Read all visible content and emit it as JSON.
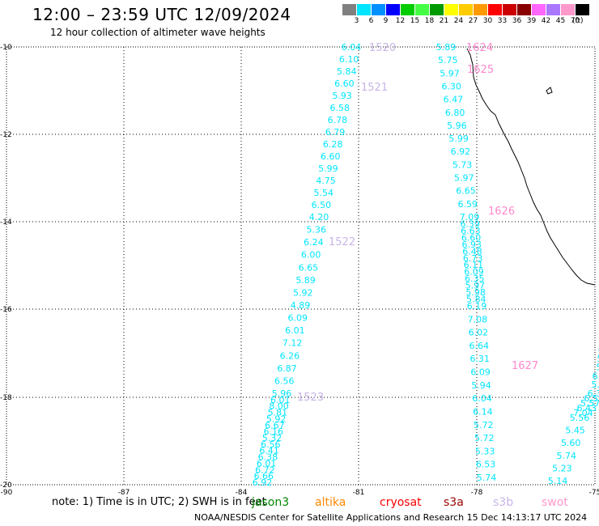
{
  "header": {
    "title": "12:00 – 23:59 UTC 12/09/2024",
    "subtitle": "12 hour collection of altimeter wave heights"
  },
  "legend": {
    "colors": [
      "#808080",
      "#00e5ff",
      "#0090ff",
      "#0000ff",
      "#00cc00",
      "#44ff44",
      "#009900",
      "#ffff00",
      "#ffcc00",
      "#ff9900",
      "#ff0000",
      "#cc0000",
      "#880000",
      "#ff66ff",
      "#aa77ff",
      "#ff99cc",
      "#000000"
    ],
    "labels": [
      "3",
      "6",
      "9",
      "12",
      "15",
      "18",
      "21",
      "24",
      "27",
      "30",
      "33",
      "36",
      "39",
      "42",
      "45",
      "70"
    ],
    "unit": "(ft)"
  },
  "axes": {
    "x_ticks": [
      "-90",
      "-87",
      "-84",
      "-81",
      "-78",
      "-75"
    ],
    "y_ticks": [
      "-10",
      "-12",
      "-14",
      "-16",
      "-18",
      "-20"
    ]
  },
  "tracks": {
    "color_wave": "#00e5ff",
    "color_s3b": "#c8b4e6",
    "color_swot": "#ff88cc",
    "t1520": [
      "6.04",
      "6.10",
      "5.84",
      "6.60",
      "5.93",
      "6.58",
      "6.78",
      "6.79",
      "6.28",
      "6.60",
      "5.99",
      "4.75",
      "5.54",
      "6.50",
      "4.20",
      "5.36",
      "6.24",
      "6.00",
      "6.65",
      "5.89",
      "5.92",
      "4.89",
      "6.09",
      "6.01",
      "7.12",
      "6.26",
      "6.87",
      "6.56",
      "5.96",
      "6.01",
      "8.00",
      "5.81",
      "5.92",
      "6.67",
      "6.16",
      "5.32",
      "6.56",
      "6.41",
      "6.38",
      "6.01",
      "6.72",
      "6.66",
      "6.92"
    ],
    "t1624": [
      "5.89",
      "5.75",
      "5.97",
      "6.30",
      "6.47",
      "6.80",
      "5.96",
      "5.99",
      "6.92",
      "5.73",
      "5.97",
      "6.65",
      "6.59",
      "7.09",
      "6.39",
      "6.63",
      "6.60",
      "6.93",
      "6.48",
      "6.73",
      "6.11",
      "6.09",
      "6.35",
      "5.97",
      "5.98",
      "5.84",
      "6.19",
      "7.08",
      "6.02",
      "6.64",
      "6.31",
      "6.09",
      "5.94",
      "6.04",
      "6.14",
      "5.72",
      "5.72",
      "5.33",
      "6.53",
      "5.74"
    ],
    "t1628": [
      "6.",
      "5.",
      "5.",
      "6.1",
      "5.5",
      "6.38",
      "6.51",
      "5.57",
      "6.43",
      "7.04",
      "5.56",
      "5.45",
      "5.60",
      "5.74",
      "5.23",
      "5.14"
    ],
    "labels_s3b": [
      "1520",
      "1521",
      "1522",
      "1523"
    ],
    "labels_swot": [
      "1624",
      "1625",
      "1626",
      "1627"
    ]
  },
  "note": "note: 1) Time is in UTC; 2) SWH is in feet",
  "satellites": [
    {
      "name": "jason3",
      "color": "#008800"
    },
    {
      "name": "altika",
      "color": "#ff8800"
    },
    {
      "name": "cryosat",
      "color": "#ff0000"
    },
    {
      "name": "s3a",
      "color": "#990000"
    },
    {
      "name": "s3b",
      "color": "#c8b4e6"
    },
    {
      "name": "swot",
      "color": "#ff99cc"
    }
  ],
  "footer": "NOAA/NESDIS Center for Satellite Applications and Research   15 Dec 14:13:17 UTC 2024"
}
